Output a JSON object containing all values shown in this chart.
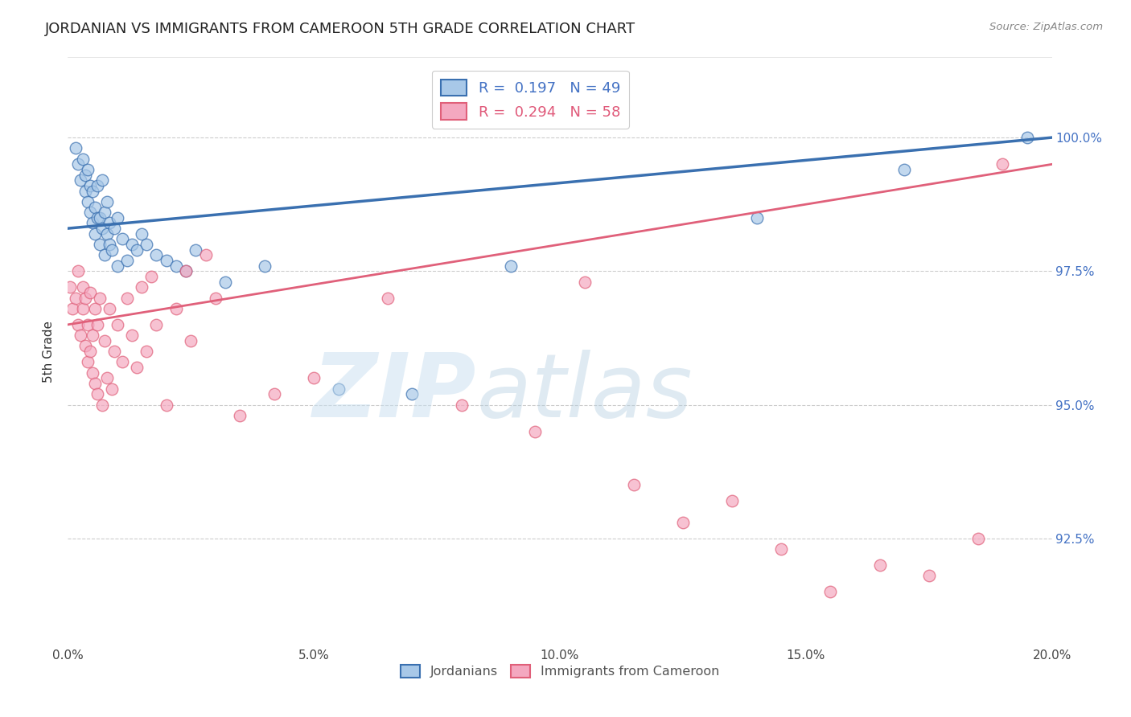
{
  "title": "JORDANIAN VS IMMIGRANTS FROM CAMEROON 5TH GRADE CORRELATION CHART",
  "source": "Source: ZipAtlas.com",
  "ylabel": "5th Grade",
  "xlabel_ticks": [
    "0.0%",
    "5.0%",
    "10.0%",
    "15.0%",
    "20.0%"
  ],
  "xlabel_vals": [
    0.0,
    5.0,
    10.0,
    15.0,
    20.0
  ],
  "ylabel_ticks": [
    "92.5%",
    "95.0%",
    "97.5%",
    "100.0%"
  ],
  "ylabel_vals": [
    92.5,
    95.0,
    97.5,
    100.0
  ],
  "xlim": [
    0.0,
    20.0
  ],
  "ylim": [
    90.5,
    101.5
  ],
  "blue_R": 0.197,
  "blue_N": 49,
  "pink_R": 0.294,
  "pink_N": 58,
  "blue_color": "#a8c8e8",
  "pink_color": "#f4a8c0",
  "blue_line_color": "#3a70b0",
  "pink_line_color": "#e0607a",
  "legend_label_blue": "Jordanians",
  "legend_label_pink": "Immigrants from Cameroon",
  "watermark_zip": "ZIP",
  "watermark_atlas": "atlas",
  "blue_line_x0": 0.0,
  "blue_line_y0": 98.3,
  "blue_line_x1": 20.0,
  "blue_line_y1": 100.0,
  "pink_line_x0": 0.0,
  "pink_line_y0": 96.5,
  "pink_line_x1": 20.0,
  "pink_line_y1": 99.5,
  "blue_x": [
    0.15,
    0.2,
    0.25,
    0.3,
    0.35,
    0.35,
    0.4,
    0.4,
    0.45,
    0.45,
    0.5,
    0.5,
    0.55,
    0.55,
    0.6,
    0.6,
    0.65,
    0.65,
    0.7,
    0.7,
    0.75,
    0.75,
    0.8,
    0.8,
    0.85,
    0.85,
    0.9,
    0.95,
    1.0,
    1.0,
    1.1,
    1.2,
    1.3,
    1.4,
    1.5,
    1.6,
    1.8,
    2.0,
    2.2,
    2.4,
    2.6,
    3.2,
    4.0,
    5.5,
    7.0,
    9.0,
    14.0,
    17.0,
    19.5
  ],
  "blue_y": [
    99.8,
    99.5,
    99.2,
    99.6,
    99.0,
    99.3,
    98.8,
    99.4,
    99.1,
    98.6,
    98.4,
    99.0,
    98.2,
    98.7,
    98.5,
    99.1,
    98.0,
    98.5,
    98.3,
    99.2,
    97.8,
    98.6,
    98.2,
    98.8,
    98.0,
    98.4,
    97.9,
    98.3,
    97.6,
    98.5,
    98.1,
    97.7,
    98.0,
    97.9,
    98.2,
    98.0,
    97.8,
    97.7,
    97.6,
    97.5,
    97.9,
    97.3,
    97.6,
    95.3,
    95.2,
    97.6,
    98.5,
    99.4,
    100.0
  ],
  "pink_x": [
    0.05,
    0.1,
    0.15,
    0.2,
    0.2,
    0.25,
    0.3,
    0.3,
    0.35,
    0.35,
    0.4,
    0.4,
    0.45,
    0.45,
    0.5,
    0.5,
    0.55,
    0.55,
    0.6,
    0.6,
    0.65,
    0.7,
    0.75,
    0.8,
    0.85,
    0.9,
    0.95,
    1.0,
    1.1,
    1.2,
    1.3,
    1.4,
    1.5,
    1.6,
    1.7,
    1.8,
    2.0,
    2.2,
    2.4,
    2.5,
    2.8,
    3.0,
    3.5,
    4.2,
    5.0,
    6.5,
    8.0,
    9.5,
    10.5,
    11.5,
    12.5,
    13.5,
    14.5,
    15.5,
    16.5,
    17.5,
    18.5,
    19.0
  ],
  "pink_y": [
    97.2,
    96.8,
    97.0,
    96.5,
    97.5,
    96.3,
    96.8,
    97.2,
    96.1,
    97.0,
    95.8,
    96.5,
    96.0,
    97.1,
    95.6,
    96.3,
    95.4,
    96.8,
    95.2,
    96.5,
    97.0,
    95.0,
    96.2,
    95.5,
    96.8,
    95.3,
    96.0,
    96.5,
    95.8,
    97.0,
    96.3,
    95.7,
    97.2,
    96.0,
    97.4,
    96.5,
    95.0,
    96.8,
    97.5,
    96.2,
    97.8,
    97.0,
    94.8,
    95.2,
    95.5,
    97.0,
    95.0,
    94.5,
    97.3,
    93.5,
    92.8,
    93.2,
    92.3,
    91.5,
    92.0,
    91.8,
    92.5,
    99.5
  ]
}
